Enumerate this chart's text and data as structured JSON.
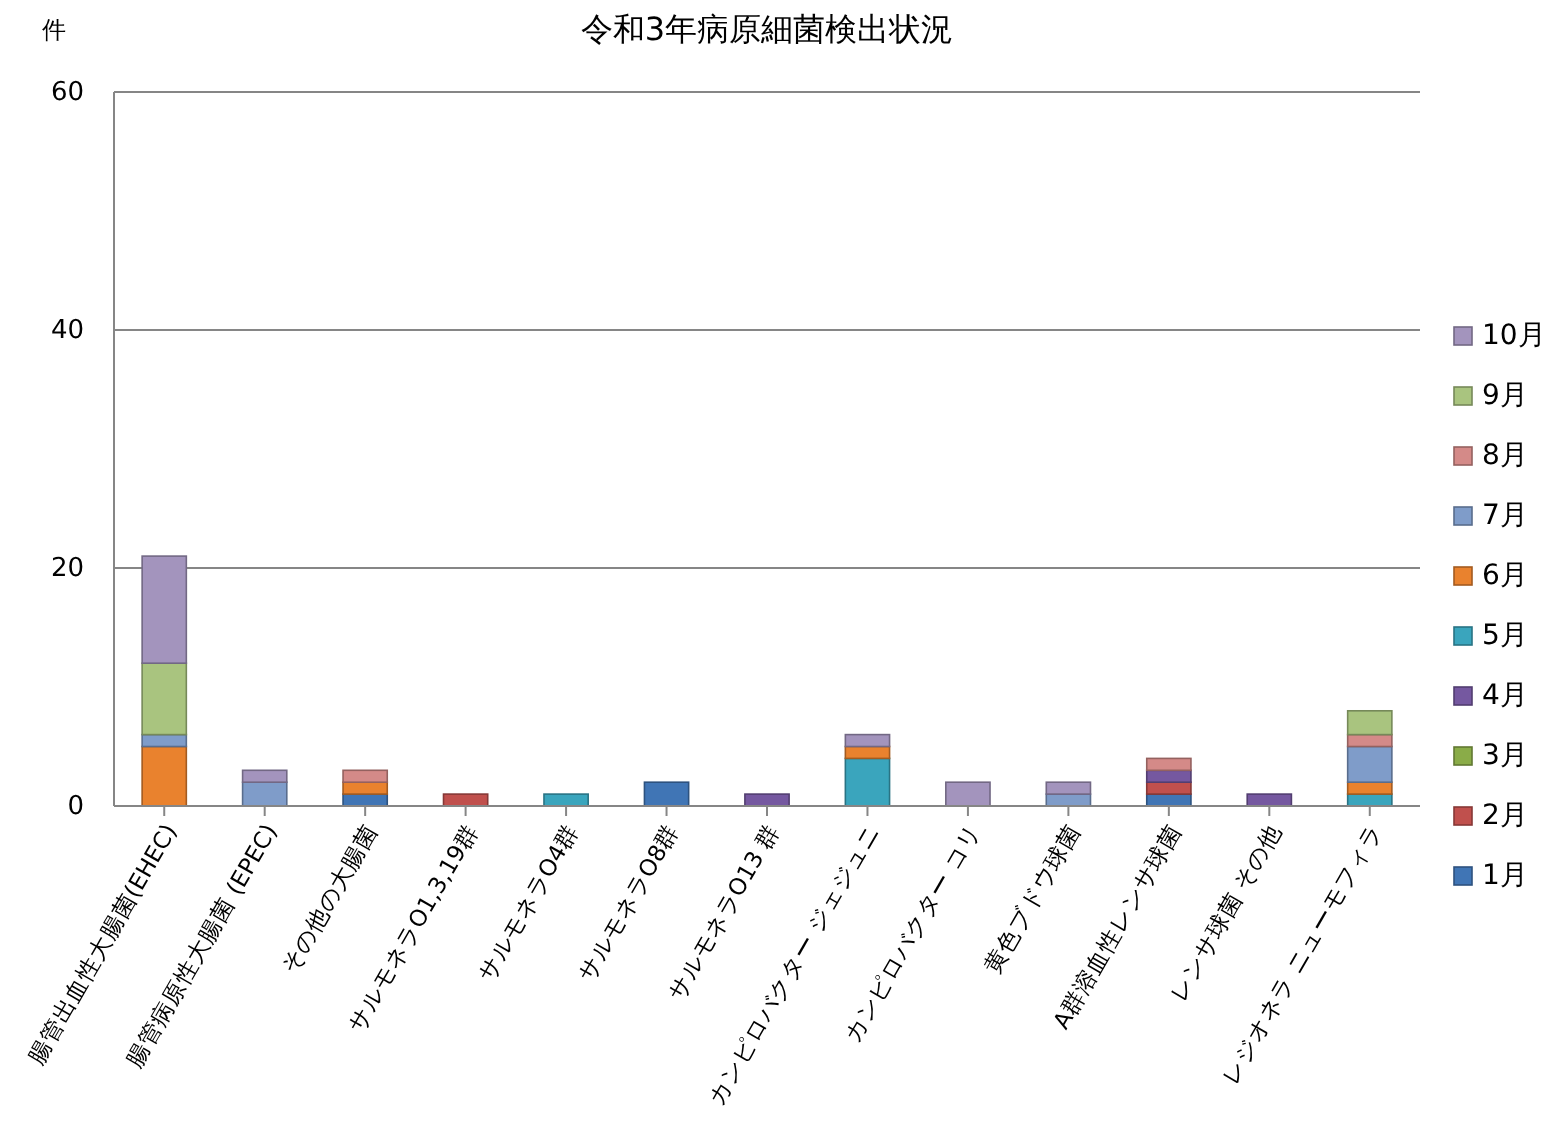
{
  "chart_data": {
    "type": "bar",
    "title": "令和3年病原細菌検出状況",
    "ylabel": "件",
    "categories": [
      "腸管出血性大腸菌(EHEC)",
      "腸管病原性大腸菌 (EPEC)",
      "その他の大腸菌",
      "サルモネラO1,3,19群",
      "サルモネラO4群",
      "サルモネラO8群",
      "サルモネラO13 群",
      "カンピロバクター ジェジュニ",
      "カンピロバクター コリ",
      "黄色ブドウ球菌",
      "A群溶血性レンサ球菌",
      "レンサ球菌 その他",
      "レジオネラ ニューモフィラ"
    ],
    "stacked": true,
    "series": [
      {
        "name": "1月",
        "color": "#4075b5",
        "values": [
          0,
          0,
          1,
          0,
          0,
          2,
          0,
          0,
          0,
          0,
          1,
          0,
          0
        ]
      },
      {
        "name": "2月",
        "color": "#c0504d",
        "values": [
          0,
          0,
          0,
          1,
          0,
          0,
          0,
          0,
          0,
          0,
          1,
          0,
          0
        ]
      },
      {
        "name": "3月",
        "color": "#8aac48",
        "values": [
          0,
          0,
          0,
          0,
          0,
          0,
          0,
          0,
          0,
          0,
          0,
          0,
          0
        ]
      },
      {
        "name": "4月",
        "color": "#7558a0",
        "values": [
          0,
          0,
          0,
          0,
          0,
          0,
          1,
          0,
          0,
          0,
          1,
          1,
          0
        ]
      },
      {
        "name": "5月",
        "color": "#3aa5bd",
        "values": [
          0,
          0,
          0,
          0,
          1,
          0,
          0,
          4,
          0,
          0,
          0,
          0,
          1
        ]
      },
      {
        "name": "6月",
        "color": "#e9822e",
        "values": [
          5,
          0,
          1,
          0,
          0,
          0,
          0,
          1,
          0,
          0,
          0,
          0,
          1
        ]
      },
      {
        "name": "7月",
        "color": "#7f9cc9",
        "values": [
          1,
          2,
          0,
          0,
          0,
          0,
          0,
          0,
          0,
          1,
          0,
          0,
          3
        ]
      },
      {
        "name": "8月",
        "color": "#d48a88",
        "values": [
          0,
          0,
          1,
          0,
          0,
          0,
          0,
          0,
          0,
          0,
          1,
          0,
          1
        ]
      },
      {
        "name": "9月",
        "color": "#a9c47f",
        "values": [
          6,
          0,
          0,
          0,
          0,
          0,
          0,
          0,
          0,
          0,
          0,
          0,
          2
        ]
      },
      {
        "name": "10月",
        "color": "#a394bd",
        "values": [
          9,
          1,
          0,
          0,
          0,
          0,
          0,
          1,
          2,
          1,
          0,
          0,
          0
        ]
      }
    ],
    "ylim": [
      0,
      60
    ],
    "yticks": [
      0,
      20,
      40,
      60
    ],
    "grid": "y",
    "legend": "right"
  }
}
